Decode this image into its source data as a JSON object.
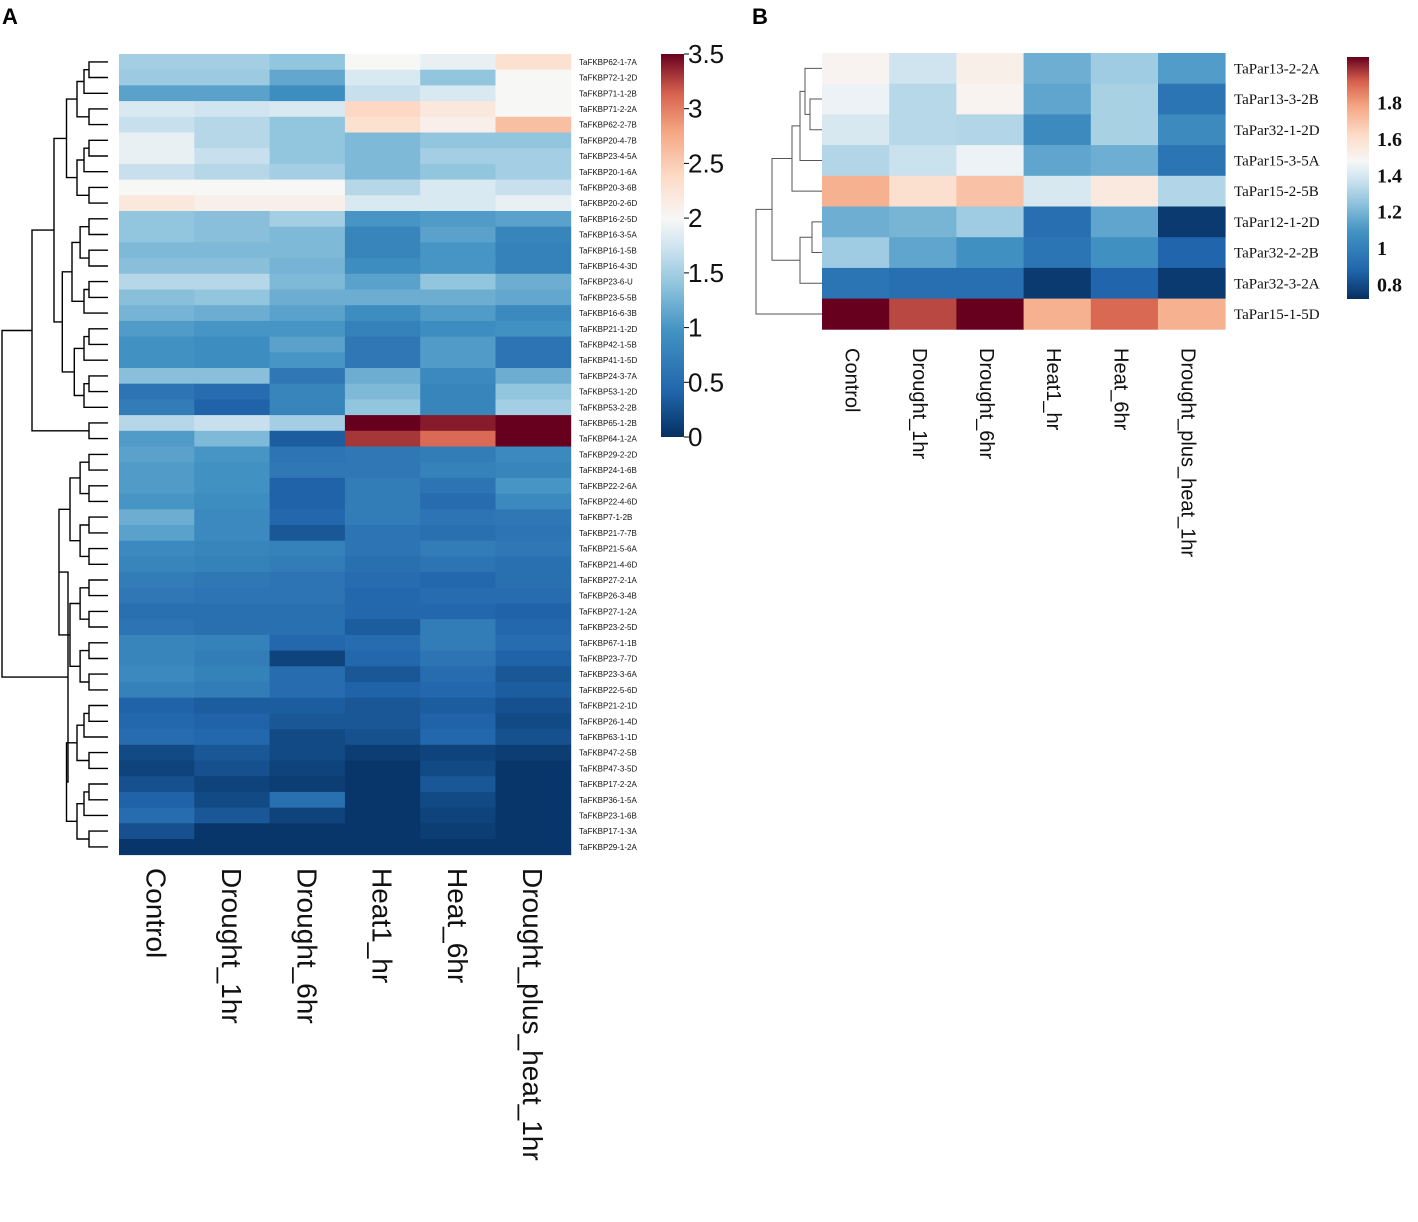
{
  "chart_data": [
    {
      "panel": "A",
      "type": "heatmap",
      "columns": [
        "Control",
        "Drought_1hr",
        "Drought_6hr",
        "Heat1_hr",
        "Heat_6hr",
        "Drought_plus_heat_1hr"
      ],
      "rows": [
        "TaFKBP62-1-7A",
        "TaFKBP72-1-2D",
        "TaFKBP71-1-2B",
        "TaFKBP71-2-2A",
        "TaFKBP62-2-7B",
        "TaFKBP20-4-7B",
        "TaFKBP23-4-5A",
        "TaFKBP20-1-6A",
        "TaFKBP20-3-6B",
        "TaFKBP20-2-6D",
        "TaFKBP16-2-5D",
        "TaFKBP16-3-5A",
        "TaFKBP16-1-5B",
        "TaFKBP16-4-3D",
        "TaFKBP23-6-U",
        "TaFKBP23-5-5B",
        "TaFKBP16-6-3B",
        "TaFKBP21-1-2D",
        "TaFKBP42-1-5B",
        "TaFKBP41-1-5D",
        "TaFKBP24-3-7A",
        "TaFKBP53-1-2D",
        "TaFKBP53-2-2B",
        "TaFKBP65-1-2B",
        "TaFKBP64-1-2A",
        "TaFKBP29-2-2D",
        "TaFKBP24-1-6B",
        "TaFKBP22-2-6A",
        "TaFKBP22-4-6D",
        "TaFKBP7-1-2B",
        "TaFKBP21-7-7B",
        "TaFKBP21-5-6A",
        "TaFKBP21-4-6D",
        "TaFKBP27-2-1A",
        "TaFKBP26-3-4B",
        "TaFKBP27-1-2A",
        "TaFKBP23-2-5D",
        "TaFKBP67-1-1B",
        "TaFKBP23-7-7D",
        "TaFKBP23-3-6A",
        "TaFKBP22-5-6D",
        "TaFKBP21-2-1D",
        "TaFKBP26-1-4D",
        "TaFKBP63-1-1D",
        "TaFKBP47-2-5B",
        "TaFKBP47-3-5D",
        "TaFKBP17-2-2A",
        "TaFKBP36-1-5A",
        "TaFKBP23-1-6B",
        "TaFKBP17-1-3A",
        "TaFKBP29-1-2A"
      ],
      "values": [
        [
          1.5,
          1.5,
          1.4,
          2.0,
          1.9,
          2.3
        ],
        [
          1.45,
          1.45,
          1.15,
          1.8,
          1.4,
          2.0
        ],
        [
          1.1,
          1.1,
          0.9,
          1.7,
          1.8,
          2.0
        ],
        [
          1.8,
          1.75,
          1.8,
          2.4,
          2.2,
          2.0
        ],
        [
          1.7,
          1.6,
          1.4,
          2.3,
          2.1,
          2.6
        ],
        [
          1.9,
          1.6,
          1.4,
          1.3,
          1.4,
          1.4
        ],
        [
          1.9,
          1.7,
          1.4,
          1.3,
          1.5,
          1.5
        ],
        [
          1.7,
          1.6,
          1.5,
          1.3,
          1.4,
          1.5
        ],
        [
          2.0,
          2.0,
          2.0,
          1.6,
          1.8,
          1.7
        ],
        [
          2.2,
          2.1,
          2.1,
          1.8,
          1.8,
          1.9
        ],
        [
          1.4,
          1.35,
          1.5,
          1.0,
          1.05,
          1.1
        ],
        [
          1.4,
          1.35,
          1.3,
          0.8,
          1.1,
          0.8
        ],
        [
          1.3,
          1.3,
          1.3,
          0.8,
          1.0,
          0.75
        ],
        [
          1.35,
          1.35,
          1.25,
          0.9,
          1.0,
          0.75
        ],
        [
          1.6,
          1.6,
          1.3,
          1.1,
          1.4,
          1.2
        ],
        [
          1.35,
          1.4,
          1.2,
          1.2,
          1.2,
          1.15
        ],
        [
          1.25,
          1.2,
          1.1,
          0.9,
          1.05,
          0.85
        ],
        [
          1.05,
          1.0,
          1.0,
          0.75,
          0.9,
          0.95
        ],
        [
          0.95,
          0.9,
          1.1,
          0.65,
          1.05,
          0.6
        ],
        [
          0.95,
          0.9,
          1.0,
          0.65,
          1.05,
          0.6
        ],
        [
          1.35,
          1.35,
          0.65,
          1.2,
          0.85,
          1.2
        ],
        [
          0.6,
          0.5,
          0.8,
          1.3,
          0.8,
          1.4
        ],
        [
          0.7,
          0.4,
          0.8,
          1.4,
          0.8,
          1.5
        ],
        [
          1.6,
          1.7,
          1.5,
          3.5,
          3.4,
          3.5
        ],
        [
          1.05,
          1.3,
          0.35,
          3.3,
          3.1,
          3.5
        ],
        [
          1.1,
          1.0,
          0.6,
          0.65,
          0.7,
          0.85
        ],
        [
          1.05,
          0.95,
          0.65,
          0.65,
          0.75,
          0.8
        ],
        [
          1.05,
          0.95,
          0.4,
          0.7,
          0.6,
          1.0
        ],
        [
          1.0,
          0.9,
          0.4,
          0.7,
          0.5,
          0.85
        ],
        [
          1.2,
          0.85,
          0.45,
          0.7,
          0.6,
          0.65
        ],
        [
          1.1,
          0.85,
          0.3,
          0.6,
          0.55,
          0.6
        ],
        [
          0.85,
          0.8,
          0.75,
          0.6,
          0.7,
          0.65
        ],
        [
          0.8,
          0.75,
          0.7,
          0.55,
          0.6,
          0.55
        ],
        [
          0.7,
          0.65,
          0.6,
          0.5,
          0.45,
          0.55
        ],
        [
          0.65,
          0.6,
          0.6,
          0.45,
          0.5,
          0.5
        ],
        [
          0.55,
          0.55,
          0.55,
          0.45,
          0.45,
          0.4
        ],
        [
          0.6,
          0.55,
          0.55,
          0.35,
          0.7,
          0.45
        ],
        [
          0.8,
          0.75,
          0.45,
          0.5,
          0.7,
          0.5
        ],
        [
          0.8,
          0.7,
          0.15,
          0.45,
          0.6,
          0.4
        ],
        [
          0.85,
          0.75,
          0.5,
          0.3,
          0.5,
          0.3
        ],
        [
          0.75,
          0.7,
          0.5,
          0.4,
          0.45,
          0.35
        ],
        [
          0.4,
          0.35,
          0.35,
          0.3,
          0.35,
          0.25
        ],
        [
          0.45,
          0.4,
          0.3,
          0.3,
          0.4,
          0.2
        ],
        [
          0.5,
          0.45,
          0.2,
          0.25,
          0.45,
          0.25
        ],
        [
          0.2,
          0.3,
          0.2,
          0.1,
          0.15,
          0.1
        ],
        [
          0.15,
          0.25,
          0.15,
          0.05,
          0.2,
          0.05
        ],
        [
          0.25,
          0.15,
          0.1,
          0.05,
          0.3,
          0.05
        ],
        [
          0.4,
          0.2,
          0.55,
          0.05,
          0.2,
          0.05
        ],
        [
          0.5,
          0.3,
          0.15,
          0.05,
          0.15,
          0.05
        ],
        [
          0.25,
          0.05,
          0.05,
          0.05,
          0.1,
          0.05
        ],
        [
          0.05,
          0.05,
          0.05,
          0.05,
          0.05,
          0.05
        ]
      ],
      "colorbar": {
        "min": 0,
        "max": 3.5,
        "ticks": [
          "0",
          "0.5",
          "1",
          "1.5",
          "2",
          "2.5",
          "3",
          "3.5"
        ]
      }
    },
    {
      "panel": "B",
      "type": "heatmap",
      "columns": [
        "Control",
        "Drought_1hr",
        "Drought_6hr",
        "Heat1_hr",
        "Heat_6hr",
        "Drought_plus_heat_1hr"
      ],
      "rows": [
        "TaPar13-2-2A",
        "TaPar13-3-2B",
        "TaPar32-1-2D",
        "TaPar15-3-5A",
        "TaPar15-2-5B",
        "TaPar12-1-2D",
        "TaPar32-2-2B",
        "TaPar32-3-2A",
        "TaPar15-1-5D"
      ],
      "values": [
        [
          1.5,
          1.38,
          1.52,
          1.18,
          1.28,
          1.12
        ],
        [
          1.45,
          1.33,
          1.5,
          1.15,
          1.3,
          0.95
        ],
        [
          1.4,
          1.33,
          1.32,
          1.05,
          1.3,
          1.05
        ],
        [
          1.32,
          1.37,
          1.45,
          1.15,
          1.18,
          0.95
        ],
        [
          1.75,
          1.6,
          1.7,
          1.4,
          1.55,
          1.32
        ],
        [
          1.18,
          1.2,
          1.28,
          0.92,
          1.15,
          0.75
        ],
        [
          1.28,
          1.15,
          1.08,
          0.95,
          1.08,
          0.88
        ],
        [
          0.95,
          0.92,
          0.92,
          0.75,
          0.88,
          0.75
        ],
        [
          2.05,
          1.95,
          2.05,
          1.75,
          1.9,
          1.75
        ]
      ],
      "colorbar": {
        "min": 0.72,
        "max": 2.05,
        "ticks": [
          "0.8",
          "1",
          "1.2",
          "1.4",
          "1.6",
          "1.8"
        ]
      }
    }
  ],
  "labels": {
    "panel_a": "A",
    "panel_b": "B"
  }
}
